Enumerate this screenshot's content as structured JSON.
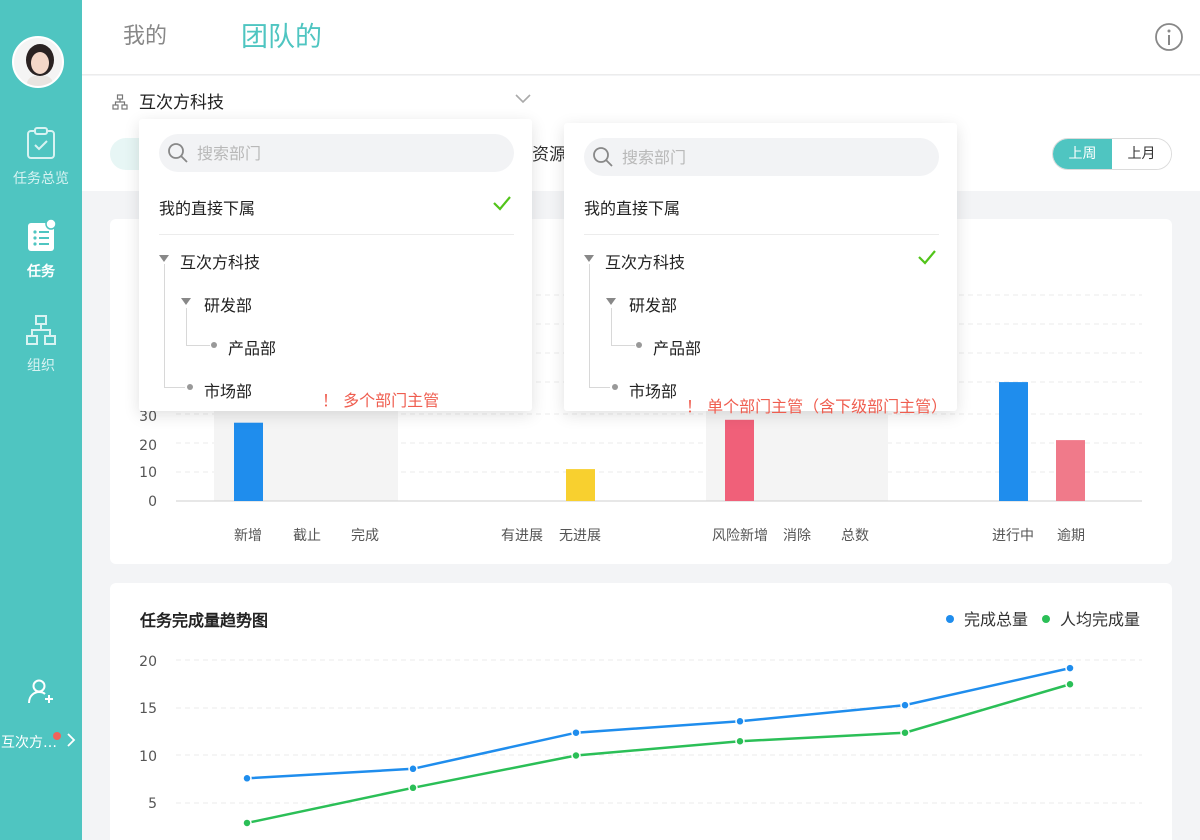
{
  "sidebar": {
    "items": [
      {
        "label": "任务总览",
        "icon": "clipboard-check-icon"
      },
      {
        "label": "任务",
        "icon": "task-list-icon"
      },
      {
        "label": "组织",
        "icon": "org-chart-icon"
      }
    ],
    "bottom": {
      "icon": "add-member-icon",
      "org_name": "互次方…",
      "chevron": "chevron-right-icon"
    }
  },
  "header": {
    "tabs": [
      {
        "label": "我的"
      },
      {
        "label": "团队的"
      }
    ],
    "info_icon": "info-icon"
  },
  "filter": {
    "company": "互次方科技",
    "resource_text": "资源",
    "range_options": [
      {
        "label": "上周"
      },
      {
        "label": "上月"
      }
    ]
  },
  "bar_chart": {
    "y_ticks": [
      "0",
      "10",
      "20",
      "30"
    ],
    "categories": [
      "新增",
      "截止",
      "完成",
      "有进展",
      "无进展",
      "风险新增",
      "消除",
      "总数",
      "进行中",
      "逾期"
    ]
  },
  "line_chart": {
    "title": "任务完成量趋势图",
    "legend": [
      {
        "name": "完成总量",
        "color": "#1f8ded"
      },
      {
        "name": "人均完成量",
        "color": "#2bbf57"
      }
    ],
    "y_ticks": [
      "5",
      "10",
      "15",
      "20"
    ]
  },
  "dropdown_left": {
    "search_placeholder": "搜索部门",
    "direct_reports": "我的直接下属",
    "tree": [
      {
        "label": "互次方科技"
      },
      {
        "label": "研发部"
      },
      {
        "label": "产品部"
      },
      {
        "label": "市场部"
      }
    ],
    "note": "！ 多个部门主管"
  },
  "dropdown_right": {
    "search_placeholder": "搜索部门",
    "direct_reports": "我的直接下属",
    "tree": [
      {
        "label": "互次方科技"
      },
      {
        "label": "研发部"
      },
      {
        "label": "产品部"
      },
      {
        "label": "市场部"
      }
    ],
    "note": "！ 单个部门主管（含下级部门主管）"
  },
  "chart_data": [
    {
      "type": "bar",
      "categories": [
        "新增",
        "截止",
        "完成",
        "有进展",
        "无进展",
        "风险新增",
        "消除",
        "总数",
        "进行中",
        "逾期"
      ],
      "values": [
        27,
        null,
        null,
        null,
        11,
        28,
        null,
        null,
        41,
        21
      ],
      "colors": [
        "#1f8ded",
        "#f06079",
        "#4ccb6c",
        "#1f8ded",
        "#f8d02f",
        "#f06079",
        "#66d384",
        "#1f8ded",
        "#1f8ded",
        "#f07a8a"
      ],
      "y_ticks": [
        0,
        10,
        20,
        30
      ]
    },
    {
      "type": "line",
      "title": "任务完成量趋势图",
      "y_ticks": [
        5,
        10,
        15,
        20
      ],
      "series": [
        {
          "name": "完成总量",
          "color": "#1f8ded",
          "values": [
            7.6,
            8.6,
            12.4,
            13.6,
            15.3,
            19.2
          ]
        },
        {
          "name": "人均完成量",
          "color": "#2bbf57",
          "values": [
            2.9,
            6.6,
            10.0,
            11.5,
            12.4,
            17.5
          ]
        }
      ]
    }
  ]
}
